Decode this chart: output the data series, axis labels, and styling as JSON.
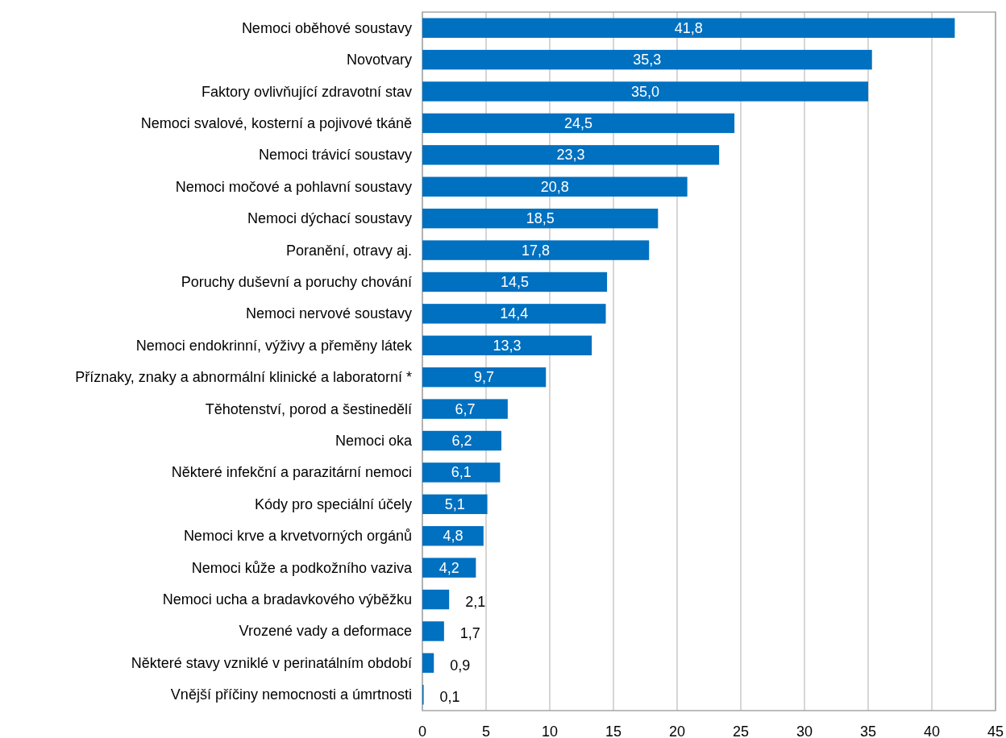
{
  "chart_data": {
    "type": "bar",
    "orientation": "horizontal",
    "categories": [
      "Nemoci oběhové soustavy",
      "Novotvary",
      "Faktory ovlivňující zdravotní stav",
      "Nemoci svalové, kosterní a pojivové tkáně",
      "Nemoci trávicí soustavy",
      "Nemoci močové a pohlavní soustavy",
      "Nemoci dýchací soustavy",
      "Poranění, otravy aj.",
      "Poruchy duševní a poruchy chování",
      "Nemoci nervové soustavy",
      "Nemoci endokrinní, výživy a přeměny látek",
      "Příznaky, znaky a abnormální klinické a laboratorní *",
      "Těhotenství, porod a šestinedělí",
      "Nemoci oka",
      "Některé infekční a parazitární nemoci",
      "Kódy pro speciální účely",
      "Nemoci krve a krvetvorných orgánů",
      "Nemoci kůže a podkožního vaziva",
      "Nemoci ucha a bradavkového výběžku",
      "Vrozené vady a deformace",
      "Některé stavy vzniklé v perinatálním období",
      "Vnější příčiny nemocnosti a úmrtnosti"
    ],
    "values": [
      41.8,
      35.3,
      35.0,
      24.5,
      23.3,
      20.8,
      18.5,
      17.8,
      14.5,
      14.4,
      13.3,
      9.7,
      6.7,
      6.2,
      6.1,
      5.1,
      4.8,
      4.2,
      2.1,
      1.7,
      0.9,
      0.1
    ],
    "value_labels": [
      "41,8",
      "35,3",
      "35,0",
      "24,5",
      "23,3",
      "20,8",
      "18,5",
      "17,8",
      "14,5",
      "14,4",
      "13,3",
      "9,7",
      "6,7",
      "6,2",
      "6,1",
      "5,1",
      "4,8",
      "4,2",
      "2,1",
      "1,7",
      "0,9",
      "0,1"
    ],
    "color": "#0070c0",
    "xlim": [
      0,
      45
    ],
    "xticks": [
      0,
      5,
      10,
      15,
      20,
      25,
      30,
      35,
      40,
      45
    ],
    "grid": "x"
  }
}
